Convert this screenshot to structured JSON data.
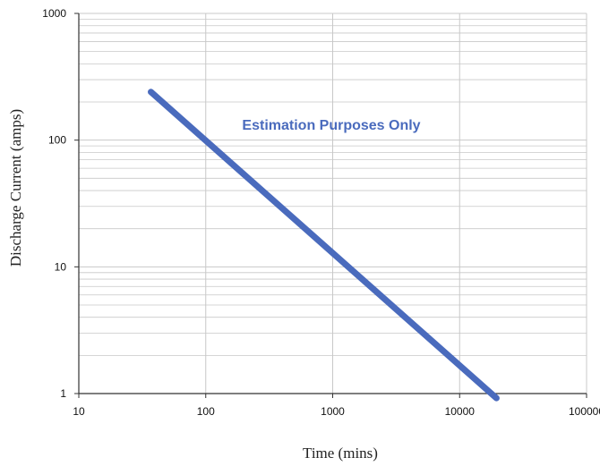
{
  "chart_data": {
    "type": "line",
    "title": "",
    "xlabel": "Time (mins)",
    "ylabel": "Discharge Current (amps)",
    "x_scale": "log",
    "y_scale": "log",
    "xlim": [
      10,
      100000
    ],
    "ylim": [
      1,
      1000
    ],
    "x_ticks": [
      "10",
      "100",
      "1000",
      "10000",
      "100000"
    ],
    "y_ticks": [
      "1",
      "10",
      "100",
      "1000"
    ],
    "grid": true,
    "annotation": "Estimation Purposes Only",
    "colors": {
      "series": "#4a6bbd",
      "annotation": "#4a6bbd",
      "grid": "#c8c8c8",
      "axis": "#333333"
    },
    "series": [
      {
        "x": [
          37,
          19500
        ],
        "y": [
          240,
          0.92
        ]
      }
    ]
  }
}
